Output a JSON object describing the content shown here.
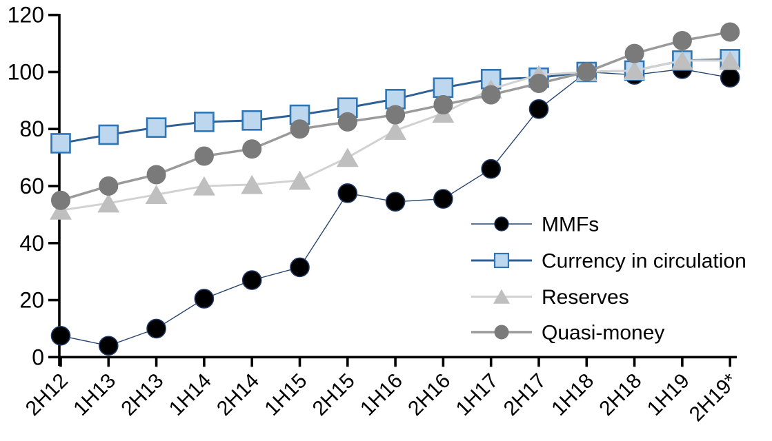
{
  "chart_data": {
    "type": "line",
    "title": "",
    "categories": [
      "2H12",
      "1H13",
      "2H13",
      "1H14",
      "2H14",
      "1H15",
      "2H15",
      "1H16",
      "2H16",
      "1H17",
      "2H17",
      "1H18",
      "2H18",
      "1H19",
      "2H19*"
    ],
    "series": [
      {
        "name": "MMFs",
        "marker": "circle",
        "marker_fill": "#000000",
        "marker_stroke": "#1F3864",
        "line_color": "#26456E",
        "line_width": 1.4,
        "values": [
          7.5,
          4,
          10,
          20.5,
          27,
          31.5,
          57.5,
          54.5,
          55.5,
          66,
          87,
          100,
          99,
          101,
          98
        ]
      },
      {
        "name": "Currency in circulation",
        "marker": "square",
        "marker_fill": "#BDD7EE",
        "marker_stroke": "#2E75B6",
        "line_color": "#2E6093",
        "line_width": 3,
        "values": [
          75,
          78,
          80.5,
          82.5,
          83,
          85,
          87.5,
          90.5,
          94.5,
          97.5,
          98,
          100,
          100.5,
          104,
          104.5
        ]
      },
      {
        "name": "Reserves",
        "marker": "triangle",
        "marker_fill": "#BFBFBF",
        "marker_stroke": "#BFBFBF",
        "line_color": "#D2D2D2",
        "line_width": 3,
        "values": [
          51.5,
          54,
          57,
          60,
          60.5,
          62,
          70,
          79.5,
          85.5,
          94,
          99,
          100,
          100.5,
          104,
          104
        ]
      },
      {
        "name": "Quasi-money",
        "marker": "circle",
        "marker_fill": "#7A7A7A",
        "marker_stroke": "#7A7A7A",
        "line_color": "#9A9A9A",
        "line_width": 3.5,
        "values": [
          55,
          60,
          64,
          70.5,
          73,
          80,
          82.5,
          85,
          88.5,
          92,
          96,
          100,
          106.5,
          111,
          114
        ]
      }
    ],
    "y_axis": {
      "min": 0,
      "max": 120,
      "step": 20,
      "tick_labels": [
        "0",
        "20",
        "40",
        "60",
        "80",
        "100",
        "120"
      ]
    },
    "x_axis": {
      "tick_labels": [
        "2H12",
        "1H13",
        "2H13",
        "1H14",
        "2H14",
        "1H15",
        "2H15",
        "1H16",
        "2H16",
        "1H17",
        "2H17",
        "1H18",
        "2H18",
        "1H19",
        "2H19*"
      ],
      "label_rotation": -45
    },
    "legend": {
      "position": "inside-right",
      "entries": [
        "MMFs",
        "Currency in circulation",
        "Reserves",
        "Quasi-money"
      ]
    },
    "grid": false,
    "axis_color": "#000000",
    "background": "#FFFFFF"
  }
}
